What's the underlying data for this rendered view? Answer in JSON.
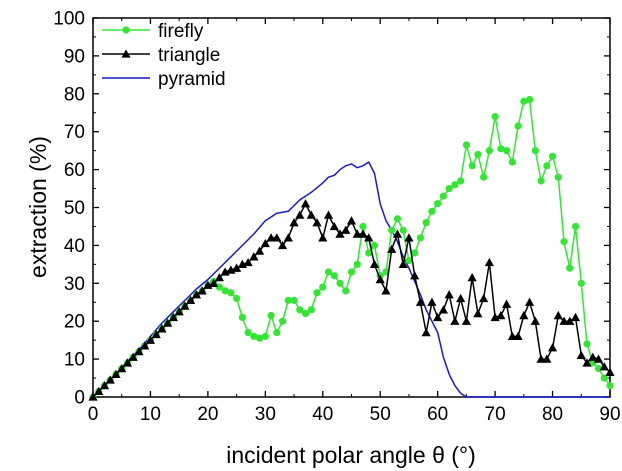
{
  "chart_data": {
    "type": "line",
    "title": "",
    "xlabel": "incident polar angle θ (°)",
    "ylabel": "extraction (%)",
    "xlim": [
      0,
      90
    ],
    "ylim": [
      0,
      100
    ],
    "x_ticks": [
      "0",
      "10",
      "20",
      "30",
      "40",
      "50",
      "60",
      "70",
      "80",
      "90"
    ],
    "y_ticks": [
      "0",
      "10",
      "20",
      "30",
      "40",
      "50",
      "60",
      "70",
      "80",
      "90",
      "100"
    ],
    "grid": false,
    "legend_position": "top-left",
    "series": [
      {
        "name": "firefly",
        "color": "#33e633",
        "marker": "circle",
        "points": [
          [
            0,
            0
          ],
          [
            1,
            1.5
          ],
          [
            2,
            3
          ],
          [
            3,
            4.5
          ],
          [
            4,
            6
          ],
          [
            5,
            7.5
          ],
          [
            6,
            9
          ],
          [
            7,
            10.5
          ],
          [
            8,
            12
          ],
          [
            9,
            13.5
          ],
          [
            10,
            15
          ],
          [
            11,
            16.5
          ],
          [
            12,
            18
          ],
          [
            13,
            19.5
          ],
          [
            14,
            21
          ],
          [
            15,
            22.5
          ],
          [
            16,
            24
          ],
          [
            17,
            25.5
          ],
          [
            18,
            27
          ],
          [
            19,
            28
          ],
          [
            20,
            29.5
          ],
          [
            21,
            30.5
          ],
          [
            22,
            29
          ],
          [
            23,
            28
          ],
          [
            24,
            27.5
          ],
          [
            25,
            26
          ],
          [
            26,
            21
          ],
          [
            27,
            17
          ],
          [
            28,
            16
          ],
          [
            29,
            15.5
          ],
          [
            30,
            16
          ],
          [
            31,
            21.5
          ],
          [
            32,
            17
          ],
          [
            33,
            20
          ],
          [
            34,
            25.5
          ],
          [
            35,
            25.5
          ],
          [
            36,
            23
          ],
          [
            37,
            22
          ],
          [
            38,
            23
          ],
          [
            39,
            27.5
          ],
          [
            40,
            29
          ],
          [
            41,
            33
          ],
          [
            42,
            32
          ],
          [
            43,
            30
          ],
          [
            44,
            28
          ],
          [
            45,
            33
          ],
          [
            46,
            35
          ],
          [
            47,
            45
          ],
          [
            48,
            38
          ],
          [
            49,
            40
          ],
          [
            50,
            32
          ],
          [
            51,
            33
          ],
          [
            52,
            44
          ],
          [
            53,
            47
          ],
          [
            54,
            44
          ],
          [
            55,
            36
          ],
          [
            56,
            38
          ],
          [
            57,
            42
          ],
          [
            58,
            46
          ],
          [
            59,
            49
          ],
          [
            60,
            51
          ],
          [
            61,
            53
          ],
          [
            62,
            55
          ],
          [
            63,
            56
          ],
          [
            64,
            57
          ],
          [
            65,
            66.5
          ],
          [
            66,
            61
          ],
          [
            67,
            64
          ],
          [
            68,
            58
          ],
          [
            69,
            65
          ],
          [
            70,
            74
          ],
          [
            71,
            65.5
          ],
          [
            72,
            65
          ],
          [
            73,
            62
          ],
          [
            74,
            71.5
          ],
          [
            75,
            78
          ],
          [
            76,
            78.5
          ],
          [
            77,
            65
          ],
          [
            78,
            57
          ],
          [
            79,
            61
          ],
          [
            80,
            63.5
          ],
          [
            81,
            58
          ],
          [
            82,
            41
          ],
          [
            83,
            34
          ],
          [
            84,
            45
          ],
          [
            85,
            30
          ],
          [
            86,
            14
          ],
          [
            87,
            9
          ],
          [
            88,
            7.5
          ],
          [
            89,
            5
          ],
          [
            90,
            3
          ]
        ]
      },
      {
        "name": "triangle",
        "color": "#000000",
        "marker": "triangle",
        "points": [
          [
            0,
            0
          ],
          [
            1,
            1.5
          ],
          [
            2,
            3
          ],
          [
            3,
            4.5
          ],
          [
            4,
            6
          ],
          [
            5,
            7.5
          ],
          [
            6,
            9
          ],
          [
            7,
            10.5
          ],
          [
            8,
            12
          ],
          [
            9,
            13.5
          ],
          [
            10,
            15
          ],
          [
            11,
            16.5
          ],
          [
            12,
            18
          ],
          [
            13,
            19.5
          ],
          [
            14,
            21
          ],
          [
            15,
            22.5
          ],
          [
            16,
            24
          ],
          [
            17,
            25.5
          ],
          [
            18,
            27
          ],
          [
            19,
            28
          ],
          [
            20,
            29.5
          ],
          [
            21,
            30
          ],
          [
            22,
            31.5
          ],
          [
            23,
            33
          ],
          [
            24,
            33.5
          ],
          [
            25,
            34
          ],
          [
            26,
            35
          ],
          [
            27,
            35.5
          ],
          [
            28,
            37
          ],
          [
            29,
            38.5
          ],
          [
            30,
            40.5
          ],
          [
            31,
            42
          ],
          [
            32,
            42
          ],
          [
            33,
            40
          ],
          [
            34,
            42
          ],
          [
            35,
            46
          ],
          [
            36,
            48
          ],
          [
            37,
            51
          ],
          [
            38,
            48
          ],
          [
            39,
            46
          ],
          [
            40,
            42
          ],
          [
            41,
            48
          ],
          [
            42,
            45
          ],
          [
            43,
            43
          ],
          [
            44,
            44
          ],
          [
            45,
            46.5
          ],
          [
            46,
            43
          ],
          [
            47,
            43
          ],
          [
            48,
            42
          ],
          [
            49,
            35
          ],
          [
            50,
            31
          ],
          [
            51,
            28
          ],
          [
            52,
            39
          ],
          [
            53,
            43
          ],
          [
            54,
            35
          ],
          [
            55,
            42
          ],
          [
            56,
            32
          ],
          [
            57,
            25
          ],
          [
            58,
            17
          ],
          [
            59,
            25
          ],
          [
            60,
            21
          ],
          [
            61,
            23
          ],
          [
            62,
            27
          ],
          [
            63,
            20
          ],
          [
            64,
            26
          ],
          [
            65,
            20
          ],
          [
            66,
            31.5
          ],
          [
            67,
            22
          ],
          [
            68,
            26
          ],
          [
            69,
            35.5
          ],
          [
            70,
            21
          ],
          [
            71,
            21.5
          ],
          [
            72,
            24.5
          ],
          [
            73,
            16
          ],
          [
            74,
            16
          ],
          [
            75,
            21.5
          ],
          [
            76,
            25
          ],
          [
            77,
            20
          ],
          [
            78,
            10
          ],
          [
            79,
            10
          ],
          [
            80,
            13
          ],
          [
            81,
            21.5
          ],
          [
            82,
            20
          ],
          [
            83,
            20
          ],
          [
            84,
            21
          ],
          [
            85,
            11
          ],
          [
            86,
            9
          ],
          [
            87,
            10.5
          ],
          [
            88,
            10
          ],
          [
            89,
            8
          ],
          [
            90,
            6.5
          ]
        ]
      },
      {
        "name": "pyramid",
        "color": "#1a1acc",
        "marker": "none",
        "points": [
          [
            0,
            0
          ],
          [
            2,
            3
          ],
          [
            4,
            6
          ],
          [
            6,
            9.5
          ],
          [
            8,
            12.5
          ],
          [
            10,
            16
          ],
          [
            12,
            19.5
          ],
          [
            14,
            22.5
          ],
          [
            16,
            25.5
          ],
          [
            18,
            28.5
          ],
          [
            20,
            31
          ],
          [
            22,
            34
          ],
          [
            24,
            37
          ],
          [
            26,
            40
          ],
          [
            28,
            43
          ],
          [
            30,
            46.5
          ],
          [
            32,
            48.5
          ],
          [
            34,
            49
          ],
          [
            36,
            52
          ],
          [
            38,
            54
          ],
          [
            40,
            56.5
          ],
          [
            41,
            58
          ],
          [
            42,
            58.5
          ],
          [
            43,
            60
          ],
          [
            44,
            61
          ],
          [
            45,
            61.5
          ],
          [
            46,
            60.5
          ],
          [
            47,
            61
          ],
          [
            48,
            62
          ],
          [
            49,
            59
          ],
          [
            50,
            51
          ],
          [
            51,
            46.5
          ],
          [
            52,
            44
          ],
          [
            53,
            41
          ],
          [
            54,
            37
          ],
          [
            55,
            34
          ],
          [
            56,
            30.5
          ],
          [
            57,
            27
          ],
          [
            58,
            23
          ],
          [
            59,
            20
          ],
          [
            60,
            17
          ],
          [
            61,
            10.5
          ],
          [
            62,
            6
          ],
          [
            63,
            3
          ],
          [
            64,
            1
          ],
          [
            65,
            0
          ],
          [
            70,
            0
          ],
          [
            80,
            0
          ],
          [
            90,
            0
          ]
        ]
      }
    ]
  }
}
